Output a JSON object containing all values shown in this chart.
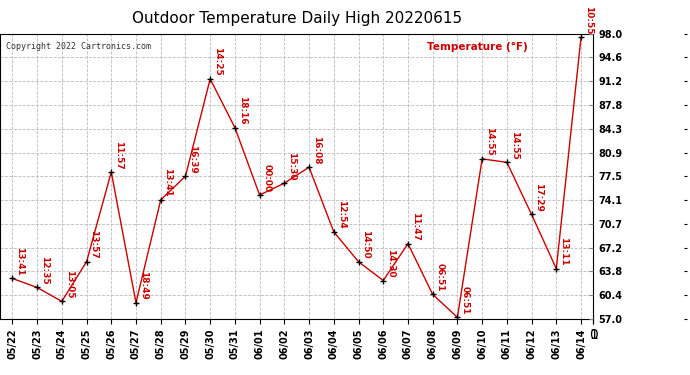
{
  "title": "Outdoor Temperature Daily High 20220615",
  "copyright": "Copyright 2022 Cartronics.com",
  "ylabel": "Temperature (°F)",
  "dates": [
    "05/22",
    "05/23",
    "05/24",
    "05/25",
    "05/26",
    "05/27",
    "05/28",
    "05/29",
    "05/30",
    "05/31",
    "06/01",
    "06/02",
    "06/03",
    "06/04",
    "06/05",
    "06/06",
    "06/07",
    "06/08",
    "06/09",
    "06/10",
    "06/11",
    "06/12",
    "06/13",
    "06/14"
  ],
  "values": [
    62.8,
    61.5,
    59.5,
    65.2,
    78.1,
    59.3,
    74.1,
    77.5,
    91.5,
    84.5,
    74.8,
    76.5,
    78.8,
    69.5,
    65.2,
    62.5,
    67.8,
    60.5,
    57.2,
    80.0,
    79.5,
    72.0,
    64.2,
    97.5
  ],
  "time_labels": [
    "13:41",
    "12:35",
    "13:05",
    "13:57",
    "11:57",
    "18:49",
    "13:41",
    "16:39",
    "14:25",
    "18:16",
    "00:00",
    "15:30",
    "16:08",
    "12:54",
    "14:50",
    "14:30",
    "11:47",
    "06:51",
    "06:51",
    "14:55",
    "14:55",
    "17:29",
    "13:11",
    "10:55"
  ],
  "line_color": "#cc0000",
  "marker_color": "#000000",
  "label_color": "#cc0000",
  "ylim": [
    57.0,
    98.0
  ],
  "yticks": [
    57.0,
    60.4,
    63.8,
    67.2,
    70.7,
    74.1,
    77.5,
    80.9,
    84.3,
    87.8,
    91.2,
    94.6,
    98.0
  ],
  "bg_color": "#ffffff",
  "grid_color": "#bbbbbb",
  "title_fontsize": 11,
  "label_fontsize": 7.5,
  "tick_fontsize": 7,
  "annot_fontsize": 6.5,
  "copyright_fontsize": 6
}
